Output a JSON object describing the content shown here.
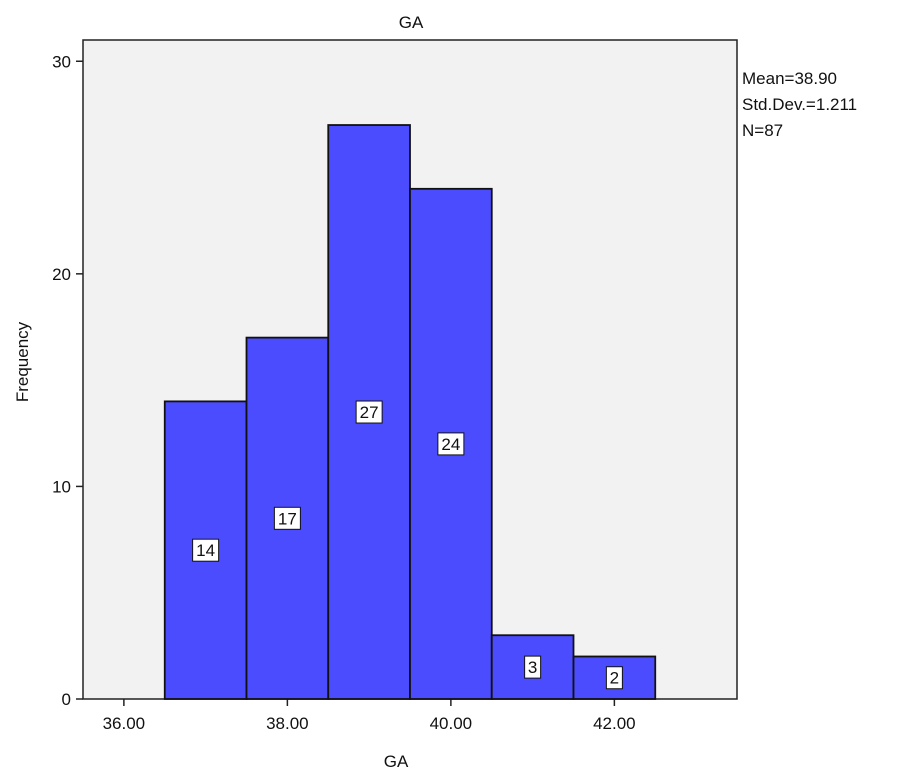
{
  "chart_data": {
    "type": "bar",
    "title": "GA",
    "xlabel": "GA",
    "ylabel": "Frequency",
    "bins": [
      {
        "start": 36.5,
        "end": 37.5,
        "value": 14
      },
      {
        "start": 37.5,
        "end": 38.5,
        "value": 17
      },
      {
        "start": 38.5,
        "end": 39.5,
        "value": 27
      },
      {
        "start": 39.5,
        "end": 40.5,
        "value": 24
      },
      {
        "start": 40.5,
        "end": 41.5,
        "value": 3
      },
      {
        "start": 41.5,
        "end": 42.5,
        "value": 2
      }
    ],
    "x_ticks": [
      "36.00",
      "38.00",
      "40.00",
      "42.00"
    ],
    "y_ticks": [
      "0",
      "10",
      "20",
      "30"
    ],
    "xlim": [
      35.5,
      43.5
    ],
    "ylim": [
      0,
      31
    ],
    "bar_color": "#4c4cff",
    "plot_background": "#f2f2f2",
    "stats": {
      "mean": "Mean=38.90",
      "std": "Std.Dev.=1.211",
      "n": "N=87"
    }
  }
}
